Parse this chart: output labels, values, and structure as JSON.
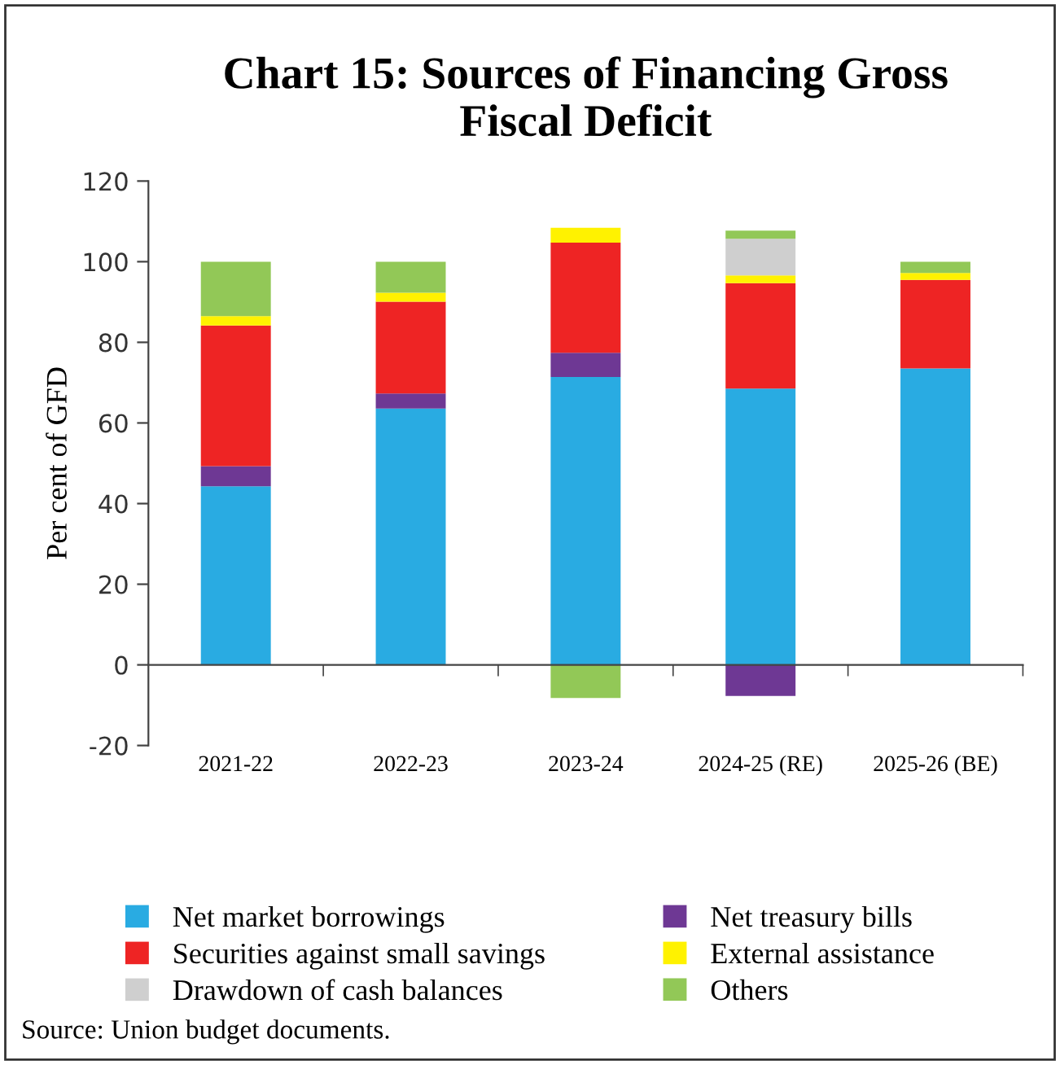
{
  "chart_data": {
    "type": "bar",
    "stacked": true,
    "title": "Chart 15: Sources of Financing Gross\nFiscal Deficit",
    "ylabel": "Per cent of GFD",
    "categories": [
      "2021-22",
      "2022-23",
      "2023-24",
      "2024-25 (RE)",
      "2025-26 (BE)"
    ],
    "series": [
      {
        "name": "Net market borrowings",
        "color": "#29abe2",
        "values": [
          44.3,
          63.6,
          71.4,
          68.5,
          73.5
        ]
      },
      {
        "name": "Net treasury bills",
        "color": "#6e3894",
        "values": [
          5.0,
          3.7,
          6.0,
          -7.7,
          null
        ]
      },
      {
        "name": "Securities against small savings",
        "color": "#ee2424",
        "values": [
          34.9,
          22.8,
          27.3,
          26.2,
          22.0
        ]
      },
      {
        "name": "External assistance",
        "color": "#fff200",
        "values": [
          2.3,
          2.2,
          3.7,
          1.9,
          1.7
        ]
      },
      {
        "name": "Drawdown of cash balances",
        "color": "#cfcfcf",
        "values": [
          null,
          null,
          null,
          9.1,
          null
        ]
      },
      {
        "name": "Others",
        "color": "#92c857",
        "values": [
          13.5,
          7.7,
          -8.2,
          2.0,
          2.8
        ]
      }
    ],
    "ylim": [
      -20,
      120
    ],
    "yticks": [
      -20,
      0,
      20,
      40,
      60,
      80,
      100,
      120
    ],
    "legend": "bottom",
    "annotations": [
      "Source: Union budget documents."
    ]
  }
}
